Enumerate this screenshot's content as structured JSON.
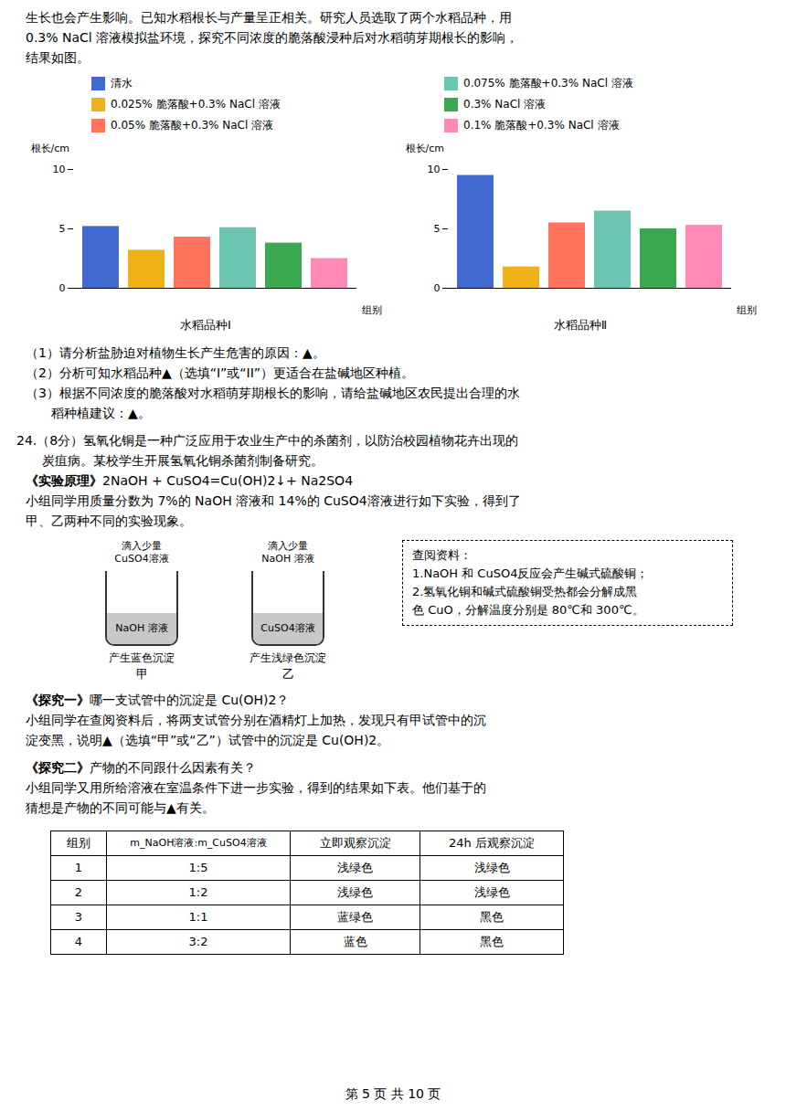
{
  "chart_data": [
    {
      "type": "bar",
      "title": "水稻品种Ⅰ",
      "categories": [
        "清水",
        "0.025% 脆落酸+0.3% NaCl 溶液",
        "0.05% 脆落酸+0.3% NaCl 溶液",
        "0.075% 脆落酸+0.3% NaCl 溶液",
        "0.3% NaCl 溶液",
        "0.1% 脆落酸+0.3% NaCl 溶液"
      ],
      "values": [
        5.2,
        3.2,
        4.3,
        5.1,
        3.8,
        2.5
      ],
      "x_label": "组别",
      "y_label": "根长/cm",
      "ylim": [
        0,
        10
      ],
      "yticks": [
        0,
        5,
        10
      ],
      "tick_labels": "y",
      "legend": "top"
    },
    {
      "type": "bar",
      "title": "水稻品种Ⅱ",
      "categories": [
        "清水",
        "0.025% 脆落酸+0.3% NaCl 溶液",
        "0.05% 脆落酸+0.3% NaCl 溶液",
        "0.075% 脆落酸+0.3% NaCl 溶液",
        "0.3% NaCl 溶液",
        "0.1% 脆落酸+0.3% NaCl 溶液"
      ],
      "values": [
        9.5,
        1.8,
        5.5,
        6.5,
        5.0,
        5.3
      ],
      "x_label": "组别",
      "y_label": "根长/cm",
      "ylim": [
        0,
        10
      ],
      "yticks": [
        0,
        5,
        10
      ],
      "tick_labels": "y"
    }
  ],
  "annotations": {
    "intro": [
      "生长也会产生影响。已知水稻根长与产量呈正相关。研究人员选取了两个水稻品种，用",
      "0.3% NaCl 溶液模拟盐环境，探究不同浓度的脆落酸浸种后对水稻萌芽期根长的影响，",
      "结果如图。"
    ],
    "questions": [
      "（1）请分析盐胁迫对植物生长产生危害的原因：▲。",
      "（2）分析可知水稻品种▲（选填“I”或“II”）更适合在盐碱地区种植。",
      "（3）根据不同浓度的脆落酸对水稻萌芽期根长的影响，请给盐碱地区农民提出合理的水",
      "　　稻种植建议：▲。"
    ],
    "q24": [
      "24.（8分）氢氧化铜是一种广泛应用于农业生产中的杀菌剂，以防治校园植物花卉出现的",
      "　　炭疽病。某校学生开展氢氧化铜杀菌剂制备研究。"
    ],
    "principle": [
      "《实验原理》",
      "2NaOH + CuSO4=Cu(OH)2↓+ Na2SO4"
    ],
    "desc": [
      "小组同学用质量分数为 7%的 NaOH 溶液和 14%的 CuSO4溶液进行如下实验，得到了",
      "甲、乙两种不同的实验现象。"
    ],
    "tubes": [
      {
        "caption": [
          "滴入少量",
          "CuSO4溶液"
        ],
        "liquid": "NaOH 溶液",
        "result": "产生蓝色沉淀",
        "letter": "甲"
      },
      {
        "caption": [
          "滴入少量",
          "NaOH 溶液"
        ],
        "liquid": "CuSO4溶液",
        "result": "产生浅绿色沉淀",
        "letter": "乙"
      }
    ],
    "info": [
      "查阅资料：",
      "1.NaOH 和 CuSO4反应会产生碱式硫酸铜；",
      "2.氢氧化铜和碱式硫酸铜受热都会分解成黑",
      "色 CuO，分解温度分别是 80℃和 300℃。"
    ],
    "explore": [
      {
        "heading": "《探究一》",
        "text": "哪一支试管中的沉淀是 Cu(OH)2？",
        "lines": [
          "小组同学在查阅资料后，将两支试管分别在酒精灯上加热，发现只有甲试管中的沉",
          "淀变黑，说明▲（选填“甲”或“乙”）试管中的沉淀是 Cu(OH)2。"
        ]
      },
      {
        "heading": "《探究二》",
        "text": "产物的不同跟什么因素有关？",
        "lines": [
          "小组同学又用所给溶液在室温条件下进一步实验，得到的结果如下表。他们基于的",
          "猜想是产物的不同可能与▲有关。"
        ]
      }
    ],
    "table": {
      "header": [
        "组别",
        "m_NaOH溶液:m_CuSO4溶液",
        "立即观察沉淀",
        "24h 后观察沉淀"
      ],
      "rows": [
        [
          "1",
          "1:5",
          "浅绿色",
          "浅绿色"
        ],
        [
          "2",
          "1:2",
          "浅绿色",
          "浅绿色"
        ],
        [
          "3",
          "1:1",
          "蓝绿色",
          "黑色"
        ],
        [
          "4",
          "3:2",
          "蓝色",
          "黑色"
        ]
      ]
    },
    "footer": "第 5 页  共 10 页"
  }
}
